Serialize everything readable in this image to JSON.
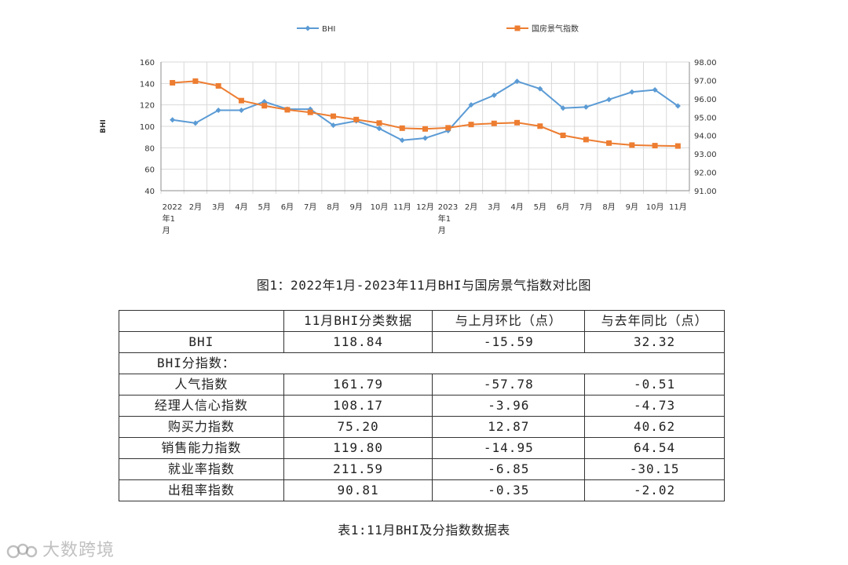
{
  "chart_data": {
    "type": "line",
    "categories": [
      "2022年1月",
      "2月",
      "3月",
      "4月",
      "5月",
      "6月",
      "7月",
      "8月",
      "9月",
      "10月",
      "11月",
      "12月",
      "2023年1月",
      "2月",
      "3月",
      "4月",
      "5月",
      "6月",
      "7月",
      "8月",
      "9月",
      "10月",
      "11月"
    ],
    "category_display": [
      [
        "2022",
        "年1",
        "月"
      ],
      [
        "2月"
      ],
      [
        "3月"
      ],
      [
        "4月"
      ],
      [
        "5月"
      ],
      [
        "6月"
      ],
      [
        "7月"
      ],
      [
        "8月"
      ],
      [
        "9月"
      ],
      [
        "10月"
      ],
      [
        "11月"
      ],
      [
        "12月"
      ],
      [
        "2023",
        "年1",
        "月"
      ],
      [
        "2月"
      ],
      [
        "3月"
      ],
      [
        "4月"
      ],
      [
        "5月"
      ],
      [
        "6月"
      ],
      [
        "7月"
      ],
      [
        "8月"
      ],
      [
        "9月"
      ],
      [
        "10月"
      ],
      [
        "11月"
      ]
    ],
    "series": [
      {
        "name": "BHI",
        "axis": "left",
        "color": "#5b9bd5",
        "marker": "diamond",
        "values": [
          106,
          103,
          115,
          115,
          123,
          116,
          116,
          101,
          105,
          98,
          87,
          89,
          96,
          120,
          129,
          142,
          135,
          117,
          118,
          125,
          132,
          134,
          119
        ]
      },
      {
        "name": "国房景气指数",
        "axis": "right",
        "color": "#ed7d31",
        "marker": "square",
        "values": [
          96.87,
          96.96,
          96.7,
          95.9,
          95.62,
          95.4,
          95.26,
          95.05,
          94.87,
          94.68,
          94.4,
          94.36,
          94.42,
          94.6,
          94.66,
          94.7,
          94.51,
          94.01,
          93.78,
          93.59,
          93.48,
          93.45,
          93.43
        ]
      }
    ],
    "y_left": {
      "label": "BHI",
      "min": 40,
      "max": 160,
      "ticks": [
        "40",
        "60",
        "80",
        "100",
        "120",
        "140",
        "160"
      ]
    },
    "y_right": {
      "min": 91.0,
      "max": 98.0,
      "ticks": [
        "91.00",
        "92.00",
        "93.00",
        "94.00",
        "95.00",
        "96.00",
        "97.00",
        "98.00"
      ]
    },
    "grid": true,
    "legend_position": "top"
  },
  "figure_caption": "图1：2022年1月-2023年11月BHI与国房景气指数对比图",
  "table": {
    "header": [
      "",
      "11月BHI分类数据",
      "与上月环比（点）",
      "与去年同比（点）"
    ],
    "rows": [
      [
        "BHI",
        "118.84",
        "-15.59",
        "32.32"
      ],
      [
        "人气指数",
        "161.79",
        "-57.78",
        "-0.51"
      ],
      [
        "经理人信心指数",
        "108.17",
        "-3.96",
        "-4.73"
      ],
      [
        "购买力指数",
        "75.20",
        "12.87",
        "40.62"
      ],
      [
        "销售能力指数",
        "119.80",
        "-14.95",
        "64.54"
      ],
      [
        "就业率指数",
        "211.59",
        "-6.85",
        "-30.15"
      ],
      [
        "出租率指数",
        "90.81",
        "-0.35",
        "-2.02"
      ]
    ],
    "section_label": "BHI分指数："
  },
  "table_caption": "表1:11月BHI及分指数数据表",
  "watermark": "大数跨境"
}
